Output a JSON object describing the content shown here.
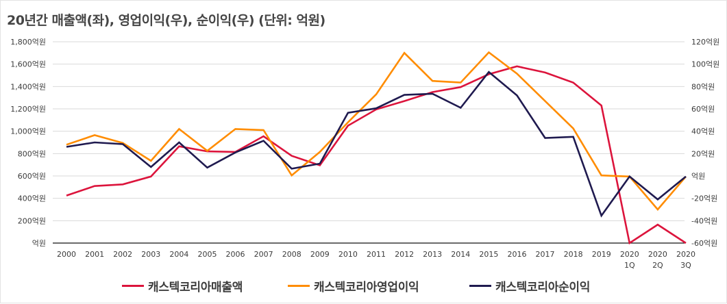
{
  "chart_data": {
    "type": "line",
    "title": "20년간 매출액(좌), 영업이익(우), 순이익(우) (단위: 억원)",
    "categories": [
      "2000",
      "2001",
      "2002",
      "2003",
      "2004",
      "2005",
      "2006",
      "2007",
      "2008",
      "2009",
      "2010",
      "2011",
      "2012",
      "2013",
      "2014",
      "2015",
      "2016",
      "2017",
      "2018",
      "2019",
      "2020\n1Q",
      "2020\n2Q",
      "2020\n3Q"
    ],
    "y_left": {
      "ylim": [
        0,
        1800
      ],
      "ticks": [
        {
          "value": 0,
          "label": "억원"
        },
        {
          "value": 200,
          "label": "200억원"
        },
        {
          "value": 400,
          "label": "400억원"
        },
        {
          "value": 600,
          "label": "600억원"
        },
        {
          "value": 800,
          "label": "800억원"
        },
        {
          "value": 1000,
          "label": "1,000억원"
        },
        {
          "value": 1200,
          "label": "1,200억원"
        },
        {
          "value": 1400,
          "label": "1,400억원"
        },
        {
          "value": 1600,
          "label": "1,600억원"
        },
        {
          "value": 1800,
          "label": "1,800억원"
        }
      ]
    },
    "y_right": {
      "ylim": [
        -60,
        120
      ],
      "ticks": [
        {
          "value": -60,
          "label": "-60억원"
        },
        {
          "value": -40,
          "label": "-40억원"
        },
        {
          "value": -20,
          "label": "-20억원"
        },
        {
          "value": 0,
          "label": "억원"
        },
        {
          "value": 20,
          "label": "20억원"
        },
        {
          "value": 40,
          "label": "40억원"
        },
        {
          "value": 60,
          "label": "60억원"
        },
        {
          "value": 80,
          "label": "80억원"
        },
        {
          "value": 100,
          "label": "100억원"
        },
        {
          "value": 120,
          "label": "120억원"
        }
      ]
    },
    "grid": true,
    "legend_position": "bottom",
    "series": [
      {
        "name": "캐스텍코리아매출액",
        "axis": "left",
        "color": "#dc143c",
        "values": [
          425,
          510,
          525,
          595,
          865,
          820,
          815,
          955,
          780,
          695,
          1050,
          1195,
          1270,
          1350,
          1395,
          1510,
          1580,
          1525,
          1435,
          1230,
          0,
          165,
          0
        ]
      },
      {
        "name": "캐스텍코리아영업이익",
        "axis": "left",
        "color": "#ff8c00",
        "values": [
          880,
          965,
          895,
          735,
          1020,
          825,
          1020,
          1010,
          605,
          815,
          1080,
          1330,
          1700,
          1450,
          1435,
          1705,
          1515,
          1270,
          1025,
          605,
          595,
          300,
          595
        ]
      },
      {
        "name": "캐스텍코리아순이익",
        "axis": "left",
        "color": "#1f1a4f",
        "values": [
          860,
          900,
          885,
          680,
          900,
          675,
          810,
          915,
          665,
          710,
          1165,
          1205,
          1325,
          1335,
          1210,
          1530,
          1320,
          940,
          950,
          245,
          595,
          390,
          595
        ]
      }
    ]
  }
}
